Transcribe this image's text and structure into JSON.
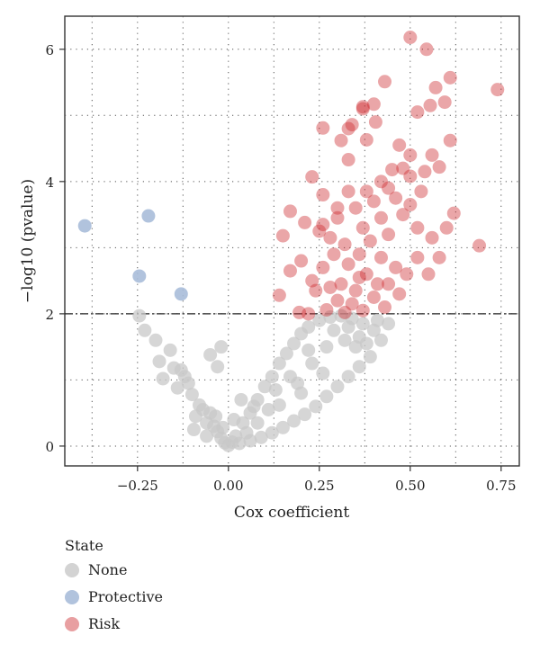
{
  "chart_data": {
    "type": "scatter",
    "title": "",
    "xlabel": "Cox coefficient",
    "ylabel": "−log10 (pvalue)",
    "xlim": [
      -0.45,
      0.8
    ],
    "ylim": [
      -0.3,
      6.5
    ],
    "x_ticks": [
      -0.25,
      0.0,
      0.25,
      0.5,
      0.75
    ],
    "x_tick_labels": [
      "−0.25",
      "0.00",
      "0.25",
      "0.50",
      "0.75"
    ],
    "y_ticks": [
      0,
      2,
      4,
      6
    ],
    "y_tick_labels": [
      "0",
      "2",
      "4",
      "6"
    ],
    "grid": true,
    "threshold_line": {
      "y": 2,
      "style": "dashdot"
    },
    "legend": {
      "title": "State",
      "position": "bottom-left",
      "entries": [
        {
          "label": "None",
          "color": "#c8c8c8"
        },
        {
          "label": "Protective",
          "color": "#a9bcd9"
        },
        {
          "label": "Risk",
          "color": "#cc2a2f"
        }
      ]
    },
    "series": [
      {
        "name": "Protective",
        "color": "#a9bcd9",
        "points": [
          [
            -0.395,
            3.33
          ],
          [
            -0.22,
            3.48
          ],
          [
            -0.245,
            2.57
          ],
          [
            -0.13,
            2.3
          ]
        ]
      },
      {
        "name": "Risk",
        "color": "#cc2a2f",
        "points": [
          [
            0.5,
            6.18
          ],
          [
            0.545,
            6.0
          ],
          [
            0.74,
            5.39
          ],
          [
            0.61,
            5.57
          ],
          [
            0.57,
            5.42
          ],
          [
            0.43,
            5.51
          ],
          [
            0.52,
            5.05
          ],
          [
            0.555,
            5.15
          ],
          [
            0.595,
            5.2
          ],
          [
            0.37,
            5.13
          ],
          [
            0.4,
            5.17
          ],
          [
            0.37,
            5.1
          ],
          [
            0.33,
            4.8
          ],
          [
            0.34,
            4.86
          ],
          [
            0.31,
            4.62
          ],
          [
            0.38,
            4.63
          ],
          [
            0.26,
            4.81
          ],
          [
            0.405,
            4.9
          ],
          [
            0.47,
            4.55
          ],
          [
            0.61,
            4.62
          ],
          [
            0.56,
            4.4
          ],
          [
            0.33,
            4.33
          ],
          [
            0.45,
            4.18
          ],
          [
            0.5,
            4.08
          ],
          [
            0.54,
            4.15
          ],
          [
            0.58,
            4.22
          ],
          [
            0.5,
            4.4
          ],
          [
            0.23,
            4.07
          ],
          [
            0.26,
            3.8
          ],
          [
            0.17,
            3.55
          ],
          [
            0.15,
            3.18
          ],
          [
            0.21,
            3.38
          ],
          [
            0.25,
            3.25
          ],
          [
            0.3,
            3.45
          ],
          [
            0.35,
            3.6
          ],
          [
            0.4,
            3.7
          ],
          [
            0.44,
            3.9
          ],
          [
            0.48,
            3.5
          ],
          [
            0.52,
            3.3
          ],
          [
            0.56,
            3.15
          ],
          [
            0.6,
            3.3
          ],
          [
            0.62,
            3.52
          ],
          [
            0.69,
            3.03
          ],
          [
            0.58,
            2.85
          ],
          [
            0.55,
            2.6
          ],
          [
            0.52,
            2.85
          ],
          [
            0.49,
            2.6
          ],
          [
            0.47,
            2.3
          ],
          [
            0.43,
            2.1
          ],
          [
            0.37,
            2.05
          ],
          [
            0.32,
            2.02
          ],
          [
            0.27,
            2.06
          ],
          [
            0.22,
            2.0
          ],
          [
            0.195,
            2.02
          ],
          [
            0.14,
            2.28
          ],
          [
            0.17,
            2.65
          ],
          [
            0.2,
            2.8
          ],
          [
            0.23,
            2.5
          ],
          [
            0.26,
            2.7
          ],
          [
            0.29,
            2.9
          ],
          [
            0.31,
            2.45
          ],
          [
            0.33,
            2.75
          ],
          [
            0.35,
            2.35
          ],
          [
            0.36,
            2.9
          ],
          [
            0.38,
            2.6
          ],
          [
            0.39,
            3.1
          ],
          [
            0.41,
            2.45
          ],
          [
            0.42,
            2.85
          ],
          [
            0.44,
            3.2
          ],
          [
            0.46,
            2.7
          ],
          [
            0.3,
            2.2
          ],
          [
            0.34,
            2.15
          ],
          [
            0.28,
            2.4
          ],
          [
            0.24,
            2.35
          ],
          [
            0.36,
            2.55
          ],
          [
            0.4,
            2.25
          ],
          [
            0.44,
            2.45
          ],
          [
            0.32,
            3.05
          ],
          [
            0.37,
            3.3
          ],
          [
            0.28,
            3.15
          ],
          [
            0.42,
            3.45
          ],
          [
            0.46,
            3.75
          ],
          [
            0.5,
            3.65
          ],
          [
            0.53,
            3.85
          ],
          [
            0.48,
            4.2
          ],
          [
            0.42,
            4.0
          ],
          [
            0.38,
            3.85
          ],
          [
            0.33,
            3.85
          ],
          [
            0.3,
            3.6
          ],
          [
            0.26,
            3.35
          ]
        ]
      },
      {
        "name": "None",
        "color": "#c8c8c8",
        "points": [
          [
            -0.245,
            1.97
          ],
          [
            -0.23,
            1.75
          ],
          [
            -0.2,
            1.6
          ],
          [
            -0.16,
            1.45
          ],
          [
            -0.19,
            1.28
          ],
          [
            -0.15,
            1.18
          ],
          [
            -0.12,
            1.05
          ],
          [
            -0.18,
            1.02
          ],
          [
            -0.14,
            0.88
          ],
          [
            -0.1,
            0.78
          ],
          [
            -0.08,
            0.62
          ],
          [
            -0.05,
            0.5
          ],
          [
            -0.06,
            0.35
          ],
          [
            -0.03,
            0.22
          ],
          [
            -0.02,
            0.12
          ],
          [
            -0.01,
            0.05
          ],
          [
            0.0,
            0.01
          ],
          [
            0.01,
            0.06
          ],
          [
            -0.04,
            0.3
          ],
          [
            -0.09,
            0.45
          ],
          [
            -0.11,
            0.95
          ],
          [
            -0.13,
            1.15
          ],
          [
            -0.07,
            0.55
          ],
          [
            -0.03,
            1.2
          ],
          [
            -0.05,
            1.38
          ],
          [
            -0.02,
            1.5
          ],
          [
            -0.035,
            0.45
          ],
          [
            -0.015,
            0.28
          ],
          [
            0.02,
            0.15
          ],
          [
            0.04,
            0.35
          ],
          [
            0.06,
            0.5
          ],
          [
            0.08,
            0.7
          ],
          [
            0.1,
            0.9
          ],
          [
            0.12,
            1.05
          ],
          [
            0.14,
            1.25
          ],
          [
            0.16,
            1.4
          ],
          [
            0.18,
            1.55
          ],
          [
            0.2,
            1.7
          ],
          [
            0.22,
            1.8
          ],
          [
            0.25,
            1.9
          ],
          [
            0.28,
            1.95
          ],
          [
            0.31,
            1.97
          ],
          [
            0.34,
            1.93
          ],
          [
            0.37,
            1.85
          ],
          [
            0.4,
            1.75
          ],
          [
            0.42,
            1.6
          ],
          [
            0.39,
            1.35
          ],
          [
            0.36,
            1.2
          ],
          [
            0.33,
            1.05
          ],
          [
            0.3,
            0.9
          ],
          [
            0.27,
            0.75
          ],
          [
            0.24,
            0.6
          ],
          [
            0.21,
            0.48
          ],
          [
            0.18,
            0.38
          ],
          [
            0.15,
            0.28
          ],
          [
            0.12,
            0.2
          ],
          [
            0.09,
            0.13
          ],
          [
            0.06,
            0.08
          ],
          [
            0.03,
            0.04
          ],
          [
            0.14,
            0.62
          ],
          [
            0.19,
            0.95
          ],
          [
            0.23,
            1.25
          ],
          [
            0.27,
            1.5
          ],
          [
            0.32,
            1.6
          ],
          [
            0.35,
            1.5
          ],
          [
            0.26,
            1.1
          ],
          [
            0.2,
            0.8
          ],
          [
            0.17,
            1.05
          ],
          [
            0.11,
            0.55
          ],
          [
            0.08,
            0.35
          ],
          [
            0.05,
            0.2
          ],
          [
            0.22,
            1.45
          ],
          [
            0.29,
            1.75
          ],
          [
            0.33,
            1.8
          ],
          [
            0.36,
            1.65
          ],
          [
            0.38,
            1.55
          ],
          [
            0.41,
            1.9
          ],
          [
            0.44,
            1.85
          ],
          [
            0.13,
            0.85
          ],
          [
            0.07,
            0.6
          ],
          [
            -0.095,
            0.25
          ],
          [
            -0.06,
            0.15
          ],
          [
            0.015,
            0.4
          ],
          [
            0.035,
            0.7
          ]
        ]
      }
    ]
  }
}
